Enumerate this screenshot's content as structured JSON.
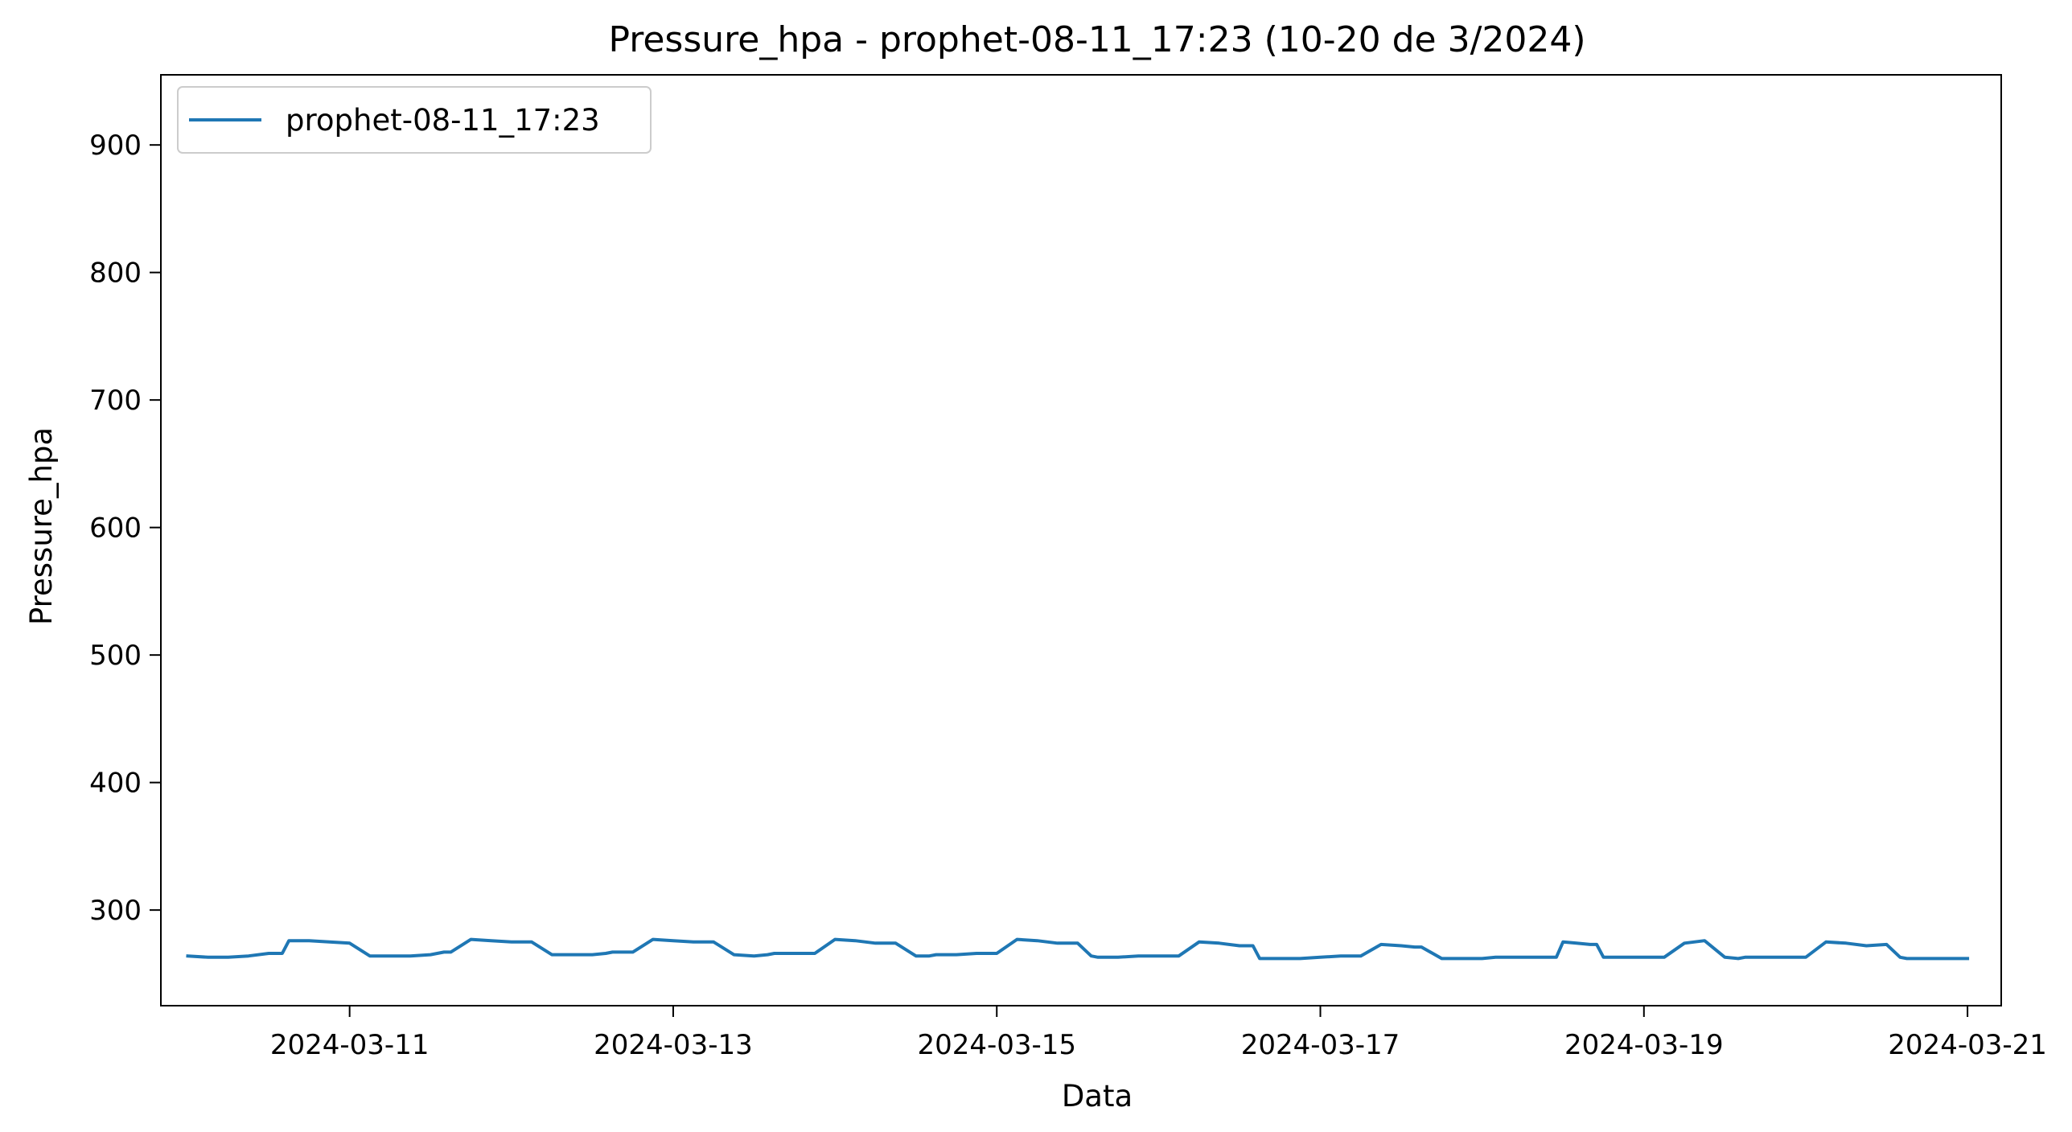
{
  "chart_data": {
    "type": "line",
    "title": "Pressure_hpa - prophet-08-11_17:23 (10-20 de 3/2024)",
    "xlabel": "Data",
    "ylabel": "Pressure_hpa",
    "x_range": [
      "2024-03-09T20:00",
      "2024-03-21T05:00"
    ],
    "ylim": [
      225,
      955
    ],
    "x_ticks": [
      "2024-03-11",
      "2024-03-13",
      "2024-03-15",
      "2024-03-17",
      "2024-03-19",
      "2024-03-21"
    ],
    "y_ticks": [
      300,
      400,
      500,
      600,
      700,
      800,
      900
    ],
    "grid": false,
    "legend_position": "top-left",
    "series": [
      {
        "name": "prophet-08-11_17:23",
        "color": "#1f77b4",
        "x": [
          "2024-03-10T00:00",
          "2024-03-10T03:00",
          "2024-03-10T06:00",
          "2024-03-10T09:00",
          "2024-03-10T12:00",
          "2024-03-10T14:00",
          "2024-03-10T15:00",
          "2024-03-10T18:00",
          "2024-03-10T21:00",
          "2024-03-11T00:00",
          "2024-03-11T03:00",
          "2024-03-11T06:00",
          "2024-03-11T09:00",
          "2024-03-11T12:00",
          "2024-03-11T14:00",
          "2024-03-11T15:00",
          "2024-03-11T18:00",
          "2024-03-11T21:00",
          "2024-03-12T00:00",
          "2024-03-12T03:00",
          "2024-03-12T06:00",
          "2024-03-12T09:00",
          "2024-03-12T12:00",
          "2024-03-12T14:00",
          "2024-03-12T15:00",
          "2024-03-12T18:00",
          "2024-03-12T21:00",
          "2024-03-13T00:00",
          "2024-03-13T03:00",
          "2024-03-13T06:00",
          "2024-03-13T09:00",
          "2024-03-13T12:00",
          "2024-03-13T14:00",
          "2024-03-13T15:00",
          "2024-03-13T18:00",
          "2024-03-13T21:00",
          "2024-03-14T00:00",
          "2024-03-14T03:00",
          "2024-03-14T06:00",
          "2024-03-14T09:00",
          "2024-03-14T12:00",
          "2024-03-14T14:00",
          "2024-03-14T15:00",
          "2024-03-14T18:00",
          "2024-03-14T21:00",
          "2024-03-15T00:00",
          "2024-03-15T03:00",
          "2024-03-15T06:00",
          "2024-03-15T09:00",
          "2024-03-15T12:00",
          "2024-03-15T14:00",
          "2024-03-15T15:00",
          "2024-03-15T18:00",
          "2024-03-15T21:00",
          "2024-03-16T00:00",
          "2024-03-16T03:00",
          "2024-03-16T06:00",
          "2024-03-16T09:00",
          "2024-03-16T12:00",
          "2024-03-16T14:00",
          "2024-03-16T15:00",
          "2024-03-16T18:00",
          "2024-03-16T21:00",
          "2024-03-17T00:00",
          "2024-03-17T03:00",
          "2024-03-17T06:00",
          "2024-03-17T09:00",
          "2024-03-17T12:00",
          "2024-03-17T14:00",
          "2024-03-17T15:00",
          "2024-03-17T18:00",
          "2024-03-17T21:00",
          "2024-03-18T00:00",
          "2024-03-18T02:00",
          "2024-03-18T03:00",
          "2024-03-18T11:00",
          "2024-03-18T12:00",
          "2024-03-18T14:00",
          "2024-03-18T16:00",
          "2024-03-18T17:00",
          "2024-03-18T18:00",
          "2024-03-18T21:00",
          "2024-03-19T00:00",
          "2024-03-19T03:00",
          "2024-03-19T06:00",
          "2024-03-19T09:00",
          "2024-03-19T12:00",
          "2024-03-19T14:00",
          "2024-03-19T15:00",
          "2024-03-19T18:00",
          "2024-03-19T21:00",
          "2024-03-20T00:00",
          "2024-03-20T03:00",
          "2024-03-20T06:00",
          "2024-03-20T09:00",
          "2024-03-20T12:00",
          "2024-03-20T14:00",
          "2024-03-20T15:00",
          "2024-03-20T18:00",
          "2024-03-20T21:00",
          "2024-03-21T00:00"
        ],
        "values": [
          264,
          263,
          263,
          264,
          266,
          266,
          276,
          276,
          275,
          274,
          264,
          264,
          264,
          265,
          267,
          267,
          277,
          276,
          275,
          275,
          265,
          265,
          265,
          266,
          267,
          267,
          277,
          276,
          275,
          275,
          265,
          264,
          265,
          266,
          266,
          266,
          277,
          276,
          274,
          274,
          264,
          264,
          265,
          265,
          266,
          266,
          277,
          276,
          274,
          274,
          264,
          263,
          263,
          264,
          264,
          264,
          275,
          274,
          272,
          272,
          262,
          262,
          262,
          263,
          264,
          264,
          273,
          272,
          271,
          271,
          262,
          262,
          262,
          263,
          263,
          263,
          275,
          274,
          273,
          273,
          263,
          263,
          263,
          263,
          274,
          276,
          263,
          262,
          263,
          263,
          263,
          263,
          275,
          274,
          272,
          273,
          263,
          262,
          262,
          262,
          262
        ]
      }
    ]
  }
}
